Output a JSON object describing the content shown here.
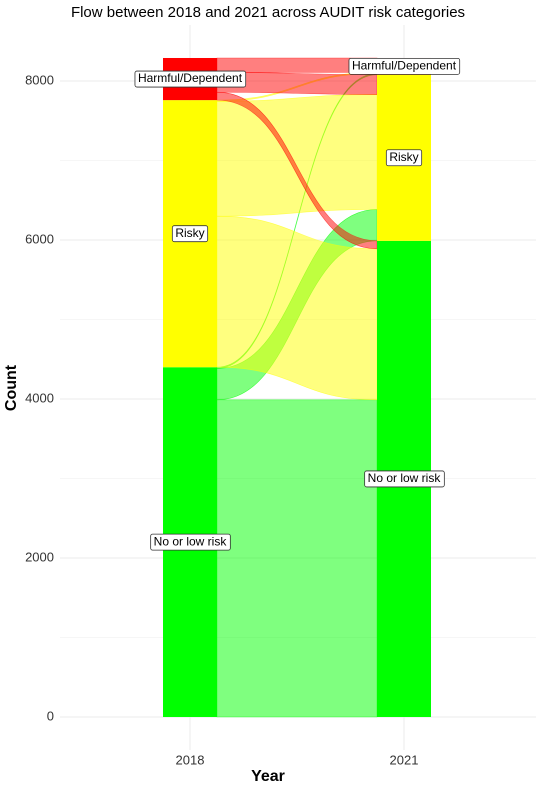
{
  "chart_data": {
    "type": "alluvial",
    "title": "Flow between 2018 and 2021 across AUDIT risk categories",
    "x_label": "Year",
    "y_label": "Count",
    "categories": [
      "2018",
      "2021"
    ],
    "strata": [
      {
        "name": "No or low risk",
        "color": "#00ff00",
        "values": [
          4400,
          5990
        ]
      },
      {
        "name": "Risky",
        "color": "#ffff00",
        "values": [
          3360,
          2090
        ]
      },
      {
        "name": "Harmful/Dependent",
        "color": "#ff0000",
        "values": [
          530,
          210
        ]
      }
    ],
    "flows": [
      [
        3990,
        395,
        15
      ],
      [
        1900,
        1445,
        15
      ],
      [
        100,
        250,
        180
      ]
    ],
    "ylim": [
      -415,
      8705
    ],
    "yticks": [
      0,
      2000,
      4000,
      6000,
      8000
    ],
    "minor_yticks": [
      1000,
      3000,
      5000,
      7000
    ],
    "grid": true
  }
}
